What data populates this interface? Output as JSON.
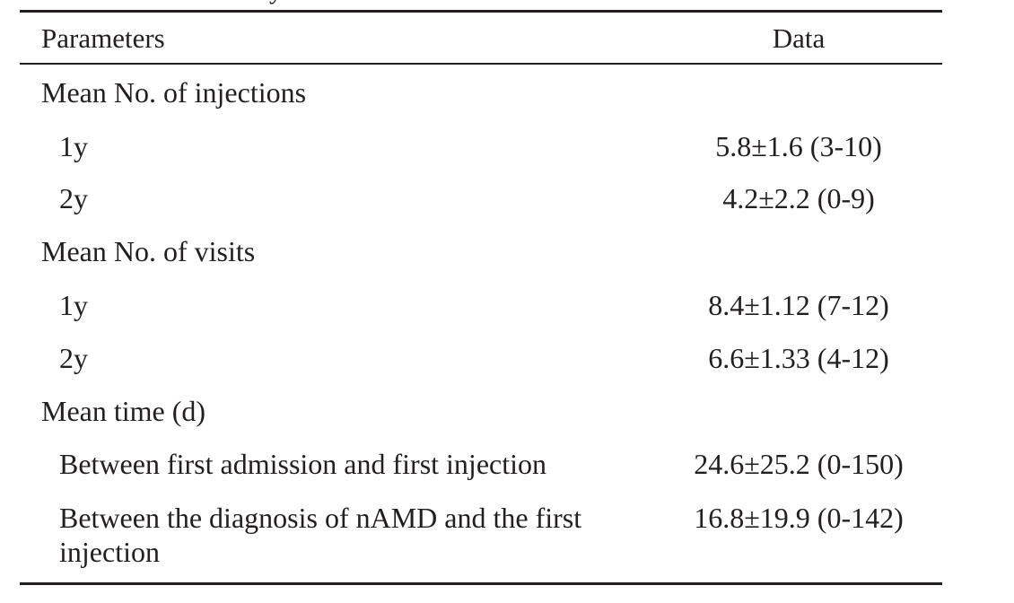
{
  "table": {
    "clipped_caption": "y",
    "header": {
      "parameters": "Parameters",
      "data": "Data"
    },
    "rows": [
      {
        "label": "Mean No. of injections",
        "value": ""
      },
      {
        "label": "1y",
        "value": "5.8±1.6 (3-10)"
      },
      {
        "label": "2y",
        "value": "4.2±2.2 (0-9)"
      },
      {
        "label": "Mean No. of visits",
        "value": ""
      },
      {
        "label": "1y",
        "value": "8.4±1.12 (7-12)"
      },
      {
        "label": "2y",
        "value": "6.6±1.33 (4-12)"
      },
      {
        "label": "Mean time (d)",
        "value": ""
      },
      {
        "label": "Between first admission and first injection",
        "value": "24.6±25.2 (0-150)"
      },
      {
        "label": "Between the diagnosis of nAMD and the first injection",
        "value": "16.8±19.9 (0-142)"
      }
    ]
  }
}
